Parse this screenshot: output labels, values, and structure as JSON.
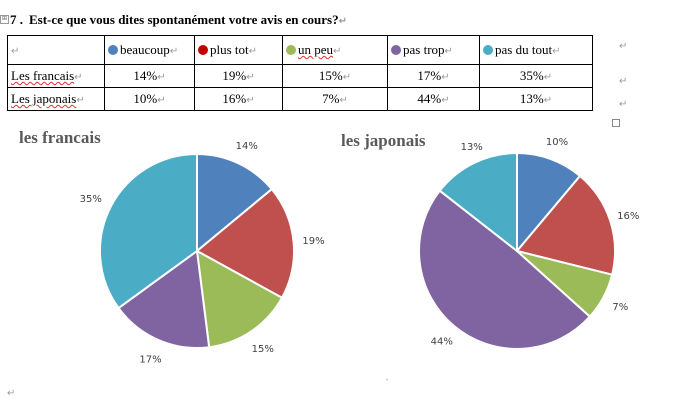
{
  "question": {
    "number": "7 .",
    "text": "Est-ce que vous dites spontanément votre avis en cours?"
  },
  "markers": {
    "paragraph": "↵",
    "anchor": "⊞",
    "caret": "ˎ"
  },
  "table": {
    "legend": [
      {
        "label": "beaucoup",
        "color": "#4f81bd"
      },
      {
        "label": "plus tot",
        "color": "#c00000"
      },
      {
        "label": "un peu",
        "color": "#9bbb59"
      },
      {
        "label": "pas trop",
        "color": "#8064a2"
      },
      {
        "label": "pas du tout",
        "color": "#4bacc6"
      }
    ],
    "rows": [
      {
        "label": "Les francais",
        "values": [
          "14%",
          "19%",
          "15%",
          "17%",
          "35%"
        ]
      },
      {
        "label": "Les japonais",
        "values": [
          "10%",
          "16%",
          "7%",
          "44%",
          "13%"
        ]
      }
    ]
  },
  "chart_data": [
    {
      "type": "pie",
      "title": "les francais",
      "categories": [
        "beaucoup",
        "plus tot",
        "un peu",
        "pas trop",
        "pas du tout"
      ],
      "values": [
        14,
        19,
        15,
        17,
        35
      ],
      "labels": [
        "14%",
        "19%",
        "15%",
        "17%",
        "35%"
      ],
      "colors": [
        "#4f81bd",
        "#c0504d",
        "#9bbb59",
        "#8064a2",
        "#4bacc6"
      ]
    },
    {
      "type": "pie",
      "title": "les japonais",
      "categories": [
        "beaucoup",
        "plus tot",
        "un peu",
        "pas trop",
        "pas du tout"
      ],
      "values": [
        10,
        16,
        7,
        44,
        13
      ],
      "labels": [
        "10%",
        "16%",
        "7%",
        "44%",
        "13%"
      ],
      "colors": [
        "#4f81bd",
        "#c0504d",
        "#9bbb59",
        "#8064a2",
        "#4bacc6"
      ]
    }
  ]
}
